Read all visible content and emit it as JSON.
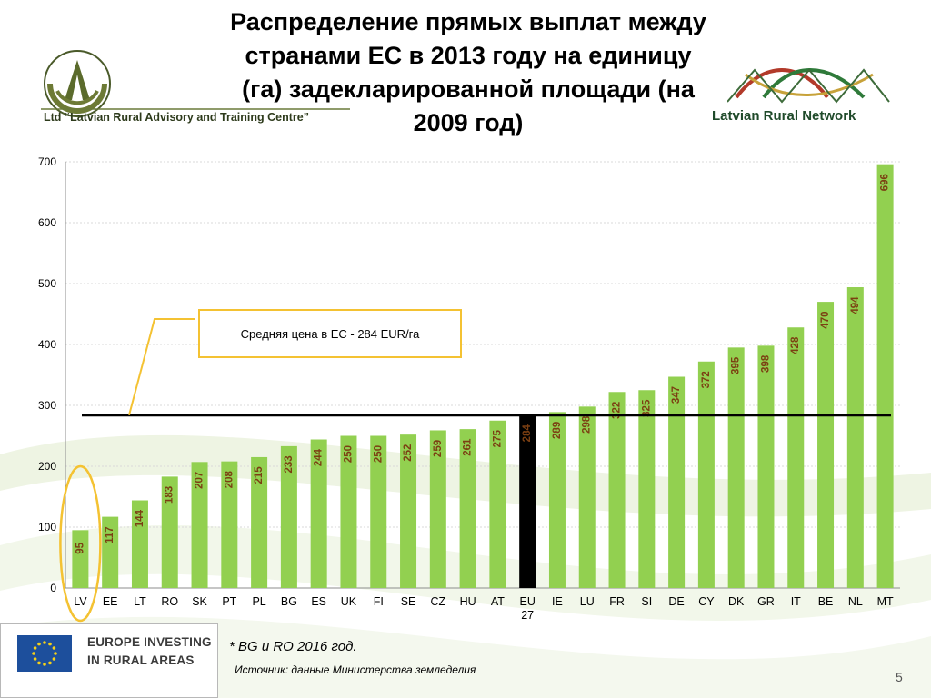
{
  "slide": {
    "title": "Распределение прямых выплат между странами ЕС в 2013 году на единицу (га) задекларированной площади (на 2009 год)",
    "page_number": "5"
  },
  "logos": {
    "left_text": "Ltd “Latvian Rural Advisory and Training Centre”",
    "right_text": "Latvian Rural Network"
  },
  "callout": {
    "text": "Средняя цена в ЕС - 284 EUR/га"
  },
  "eu_badge": {
    "line1": "EUROPE INVESTING",
    "line2": "IN RURAL AREAS"
  },
  "footnote": "* BG и RO 2016 год.",
  "source": "Источник:  данные Министерства земледелия",
  "colors": {
    "bar": "#92d050",
    "highlight_bar": "#000000",
    "value_label": "#7b3f12",
    "average_line": "#000000",
    "callout_border": "#f4c232"
  },
  "chart_data": {
    "type": "bar",
    "categories": [
      "LV",
      "EE",
      "LT",
      "RO",
      "SK",
      "PT",
      "PL",
      "BG",
      "ES",
      "UK",
      "FI",
      "SE",
      "CZ",
      "HU",
      "AT",
      "EU 27",
      "IE",
      "LU",
      "FR",
      "SI",
      "DE",
      "CY",
      "DK",
      "GR",
      "IT",
      "BE",
      "NL",
      "MT"
    ],
    "values": [
      95,
      117,
      144,
      183,
      207,
      208,
      215,
      233,
      244,
      250,
      250,
      252,
      259,
      261,
      275,
      284,
      289,
      298,
      322,
      325,
      347,
      372,
      395,
      398,
      428,
      470,
      494,
      696
    ],
    "highlight_category": "EU 27",
    "circled_category": "LV",
    "average_line": 284,
    "ylim": [
      0,
      700
    ],
    "yticks": [
      0,
      100,
      200,
      300,
      400,
      500,
      600,
      700
    ],
    "grid": true,
    "legend": "none"
  }
}
